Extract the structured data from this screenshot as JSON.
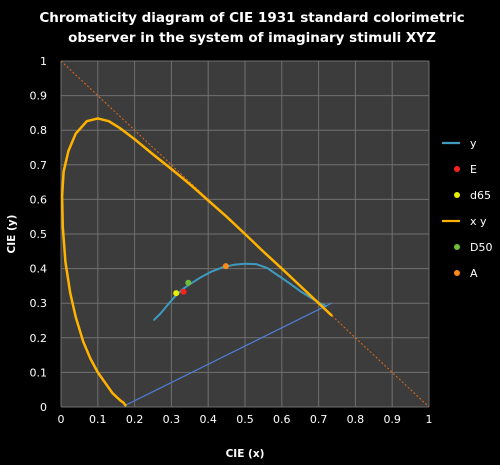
{
  "chart_data": {
    "type": "scatter",
    "title_lines": [
      "Chromaticity diagram of CIE 1931 standard colorimetric",
      "observer in the system of imaginary stimuli XYZ"
    ],
    "xlabel": "CIE (x)",
    "ylabel": "CIE (y)",
    "xlim": [
      0,
      1
    ],
    "ylim": [
      0,
      1
    ],
    "xticks": [
      "0",
      "0.1",
      "0.2",
      "0.3",
      "0.4",
      "0.5",
      "0.6",
      "0.7",
      "0.8",
      "0.9",
      "1"
    ],
    "yticks": [
      "0",
      "0.1",
      "0.2",
      "0.3",
      "0.4",
      "0.5",
      "0.6",
      "0.7",
      "0.8",
      "0.9",
      "1"
    ],
    "grid": true,
    "legend_position": "right",
    "colors": {
      "background": "#000000",
      "plot_area": "#3c3c3c",
      "grid": "#707070",
      "locus": "#ffb300",
      "planckian": "#3e9bbf",
      "purple_line": "#4f7fd6",
      "diagonal": "#e46a1a"
    },
    "series": [
      {
        "name": "y",
        "kind": "line",
        "color": "#3e9bbf",
        "points": [
          [
            0.253,
            0.252
          ],
          [
            0.27,
            0.27
          ],
          [
            0.29,
            0.295
          ],
          [
            0.31,
            0.32
          ],
          [
            0.33,
            0.34
          ],
          [
            0.35,
            0.355
          ],
          [
            0.38,
            0.375
          ],
          [
            0.41,
            0.392
          ],
          [
            0.44,
            0.404
          ],
          [
            0.47,
            0.411
          ],
          [
            0.5,
            0.414
          ],
          [
            0.53,
            0.413
          ],
          [
            0.56,
            0.402
          ],
          [
            0.59,
            0.38
          ],
          [
            0.62,
            0.358
          ],
          [
            0.65,
            0.335
          ],
          [
            0.68,
            0.315
          ],
          [
            0.7,
            0.302
          ],
          [
            0.72,
            0.292
          ]
        ]
      },
      {
        "name": "E",
        "kind": "point",
        "color": "#ff2020",
        "points": [
          [
            0.333,
            0.333
          ]
        ]
      },
      {
        "name": "d65",
        "kind": "point",
        "color": "#e8f000",
        "points": [
          [
            0.313,
            0.329
          ]
        ]
      },
      {
        "name": "x y",
        "kind": "line",
        "color": "#ffb300",
        "points": [
          [
            0.175,
            0.005
          ],
          [
            0.17,
            0.012
          ],
          [
            0.16,
            0.02
          ],
          [
            0.14,
            0.04
          ],
          [
            0.12,
            0.07
          ],
          [
            0.1,
            0.1
          ],
          [
            0.08,
            0.14
          ],
          [
            0.06,
            0.19
          ],
          [
            0.04,
            0.26
          ],
          [
            0.025,
            0.33
          ],
          [
            0.012,
            0.42
          ],
          [
            0.005,
            0.52
          ],
          [
            0.003,
            0.61
          ],
          [
            0.007,
            0.68
          ],
          [
            0.02,
            0.74
          ],
          [
            0.04,
            0.79
          ],
          [
            0.07,
            0.826
          ],
          [
            0.1,
            0.834
          ],
          [
            0.13,
            0.826
          ],
          [
            0.16,
            0.806
          ],
          [
            0.2,
            0.774
          ],
          [
            0.25,
            0.73
          ],
          [
            0.3,
            0.688
          ],
          [
            0.35,
            0.644
          ],
          [
            0.4,
            0.597
          ],
          [
            0.45,
            0.55
          ],
          [
            0.5,
            0.5
          ],
          [
            0.55,
            0.449
          ],
          [
            0.6,
            0.4
          ],
          [
            0.65,
            0.35
          ],
          [
            0.7,
            0.3
          ],
          [
            0.735,
            0.265
          ]
        ]
      },
      {
        "name": "D50",
        "kind": "point",
        "color": "#6fbf3a",
        "points": [
          [
            0.346,
            0.359
          ]
        ]
      },
      {
        "name": "A",
        "kind": "point",
        "color": "#ff8c1a",
        "points": [
          [
            0.448,
            0.407
          ]
        ]
      }
    ],
    "extra_lines": [
      {
        "role": "purple-line",
        "color": "#4f7fd6",
        "points": [
          [
            0.175,
            0.005
          ],
          [
            0.735,
            0.3
          ]
        ]
      },
      {
        "role": "diagonal-line",
        "color": "#e46a1a",
        "dashed": true,
        "points": [
          [
            0,
            1
          ],
          [
            1,
            0
          ]
        ]
      }
    ]
  }
}
